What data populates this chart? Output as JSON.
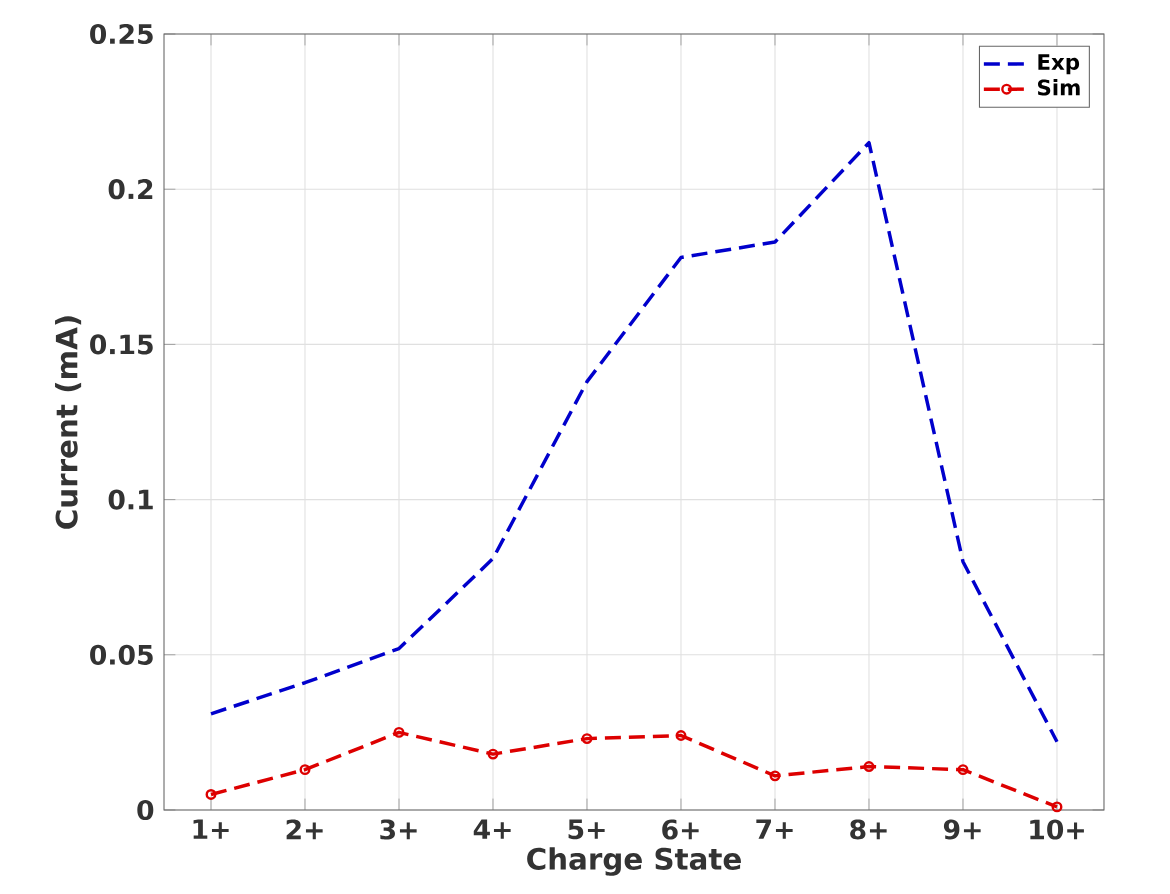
{
  "chart_data": {
    "type": "line",
    "xlabel": "Charge State",
    "ylabel": "Current (mA)",
    "categories": [
      "1+",
      "2+",
      "3+",
      "4+",
      "5+",
      "6+",
      "7+",
      "8+",
      "9+",
      "10+"
    ],
    "series": [
      {
        "name": "Exp",
        "color": "#0000cc",
        "marker": "none",
        "line_style": "dashed",
        "values": [
          0.031,
          0.041,
          0.052,
          0.081,
          0.138,
          0.178,
          0.183,
          0.215,
          0.08,
          0.022
        ]
      },
      {
        "name": "Sim",
        "color": "#dd0000",
        "marker": "circle",
        "line_style": "dashed",
        "values": [
          0.005,
          0.013,
          0.025,
          0.018,
          0.023,
          0.024,
          0.011,
          0.014,
          0.013,
          0.001
        ]
      }
    ],
    "ylim": [
      0,
      0.25
    ],
    "yticks": [
      0,
      0.05,
      0.1,
      0.15,
      0.2,
      0.25
    ],
    "grid": true,
    "legend": "top right"
  }
}
